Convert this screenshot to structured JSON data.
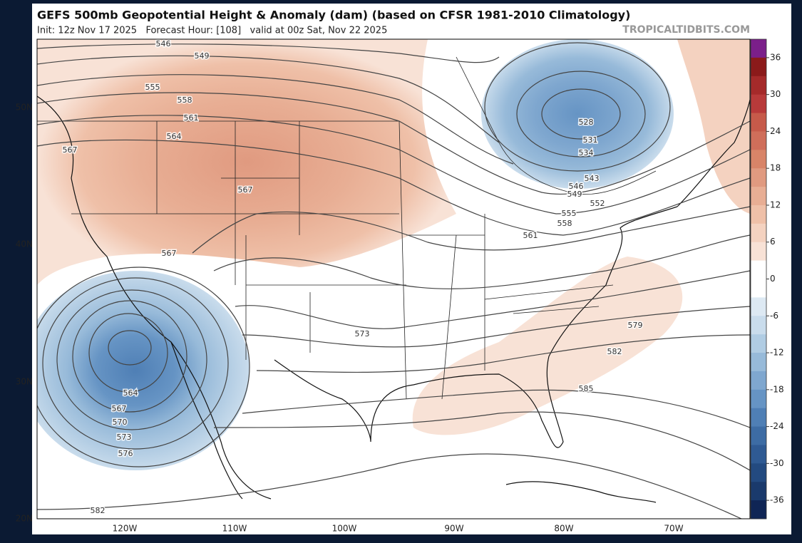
{
  "title": "GEFS 500mb Geopotential Height & Anomaly (dam) (based on CFSR 1981-2010 Climatology)",
  "subtitle": "Init: 12z Nov 17 2025   Forecast Hour: [108]   valid at 00z Sat, Nov 22 2025",
  "watermark": "TROPICALTIDBITS.COM",
  "latitude_labels": [
    "50N",
    "40N",
    "30N",
    "20N"
  ],
  "longitude_labels": [
    "120W",
    "110W",
    "100W",
    "90W",
    "80W",
    "70W"
  ],
  "colorbar": {
    "range": [
      -39,
      39
    ],
    "ticks": [
      36,
      30,
      24,
      18,
      12,
      6,
      0,
      -6,
      -12,
      -18,
      -24,
      -30,
      -36
    ],
    "colors": [
      "#7b1f8a",
      "#8b1a1a",
      "#a52a2a",
      "#b83a3a",
      "#c65a4a",
      "#cf6e5a",
      "#d88468",
      "#e09a80",
      "#e8ae94",
      "#efc0a8",
      "#f4d2c0",
      "#f8e2d6",
      "#ffffff",
      "#ffffff",
      "#dde9f3",
      "#c9dcec",
      "#b0cce3",
      "#97bad9",
      "#7fa7cf",
      "#6694c4",
      "#4f7fb5",
      "#3d6ca4",
      "#2f5a93",
      "#234a80",
      "#1a3a6c",
      "#0f2555"
    ]
  },
  "contour_labels": [
    "546",
    "549",
    "555",
    "558",
    "561",
    "564",
    "567",
    "567",
    "567",
    "573",
    "579",
    "582",
    "585",
    "564",
    "567",
    "570",
    "573",
    "576",
    "582",
    "528",
    "531",
    "534",
    "543",
    "546",
    "549",
    "552",
    "555",
    "558",
    "561"
  ]
}
